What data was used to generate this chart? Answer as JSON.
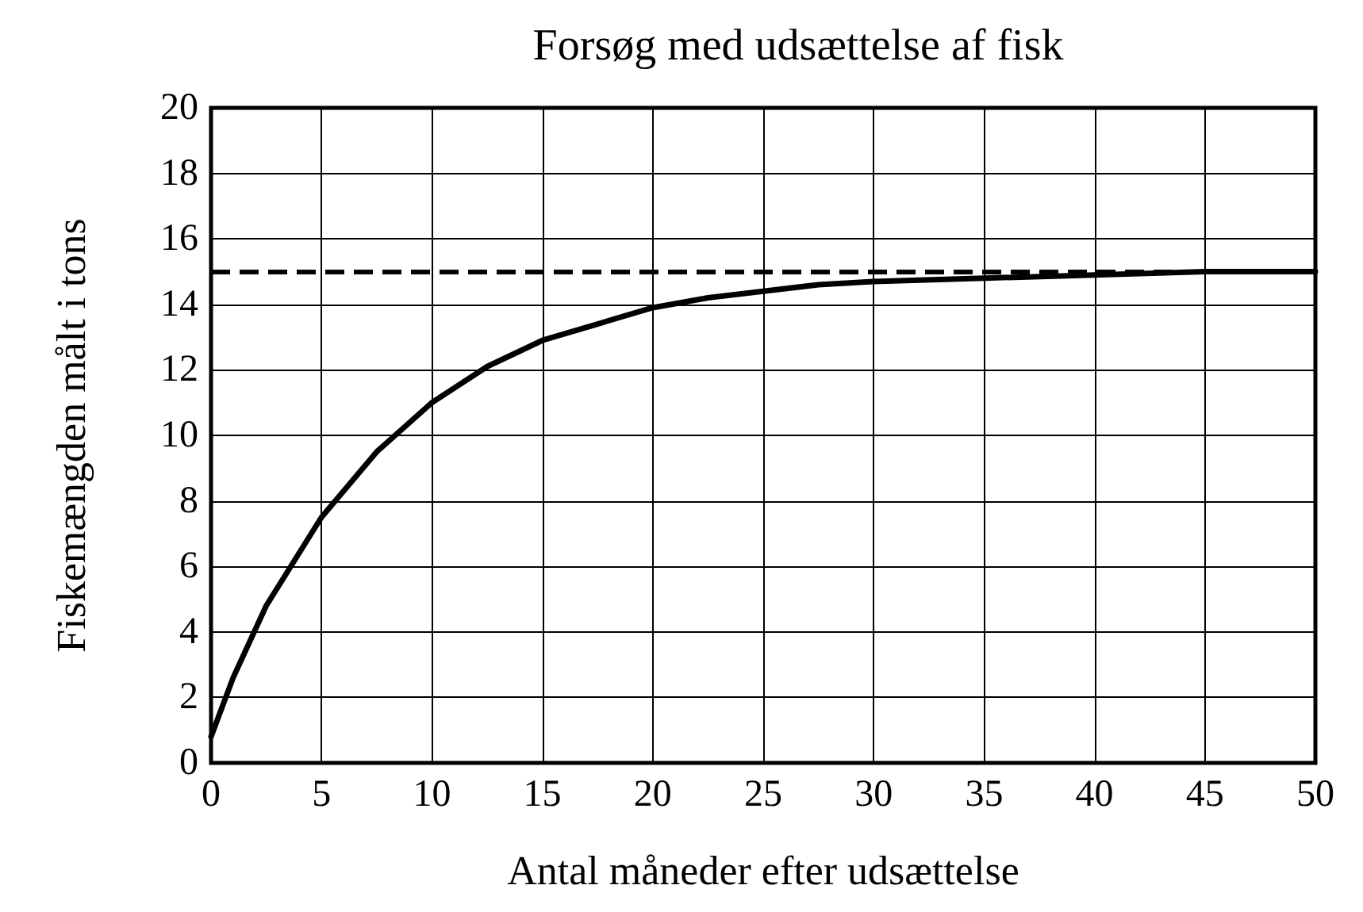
{
  "chart_data": {
    "type": "line",
    "title": "Forsøg med udsættelse af fisk",
    "xlabel": "Antal måneder efter udsættelse",
    "ylabel": "Fiskemængden målt i tons",
    "series": [
      {
        "color": "#000000",
        "x": [
          0,
          1,
          2.5,
          5,
          7.5,
          10,
          12.5,
          15,
          17.5,
          20,
          22.5,
          25,
          27.5,
          30,
          35,
          40,
          45,
          50
        ],
        "values": [
          0.8,
          2.6,
          4.8,
          7.5,
          9.5,
          11,
          12.1,
          12.9,
          13.4,
          13.9,
          14.2,
          14.4,
          14.6,
          14.7,
          14.8,
          14.9,
          15,
          15
        ]
      }
    ],
    "xlim": [
      0,
      50
    ],
    "xticks": [
      0,
      5,
      10,
      15,
      20,
      25,
      30,
      35,
      40,
      45,
      50
    ],
    "ylim": [
      0,
      20
    ],
    "yticks": [
      0,
      2,
      4,
      6,
      8,
      10,
      12,
      14,
      16,
      18,
      20
    ],
    "ref_lines": [
      {
        "axis": "y",
        "value": 15,
        "color": "#000000",
        "line_style": "dashed"
      }
    ],
    "grid": true,
    "marker": "none",
    "line_style": "solid"
  }
}
